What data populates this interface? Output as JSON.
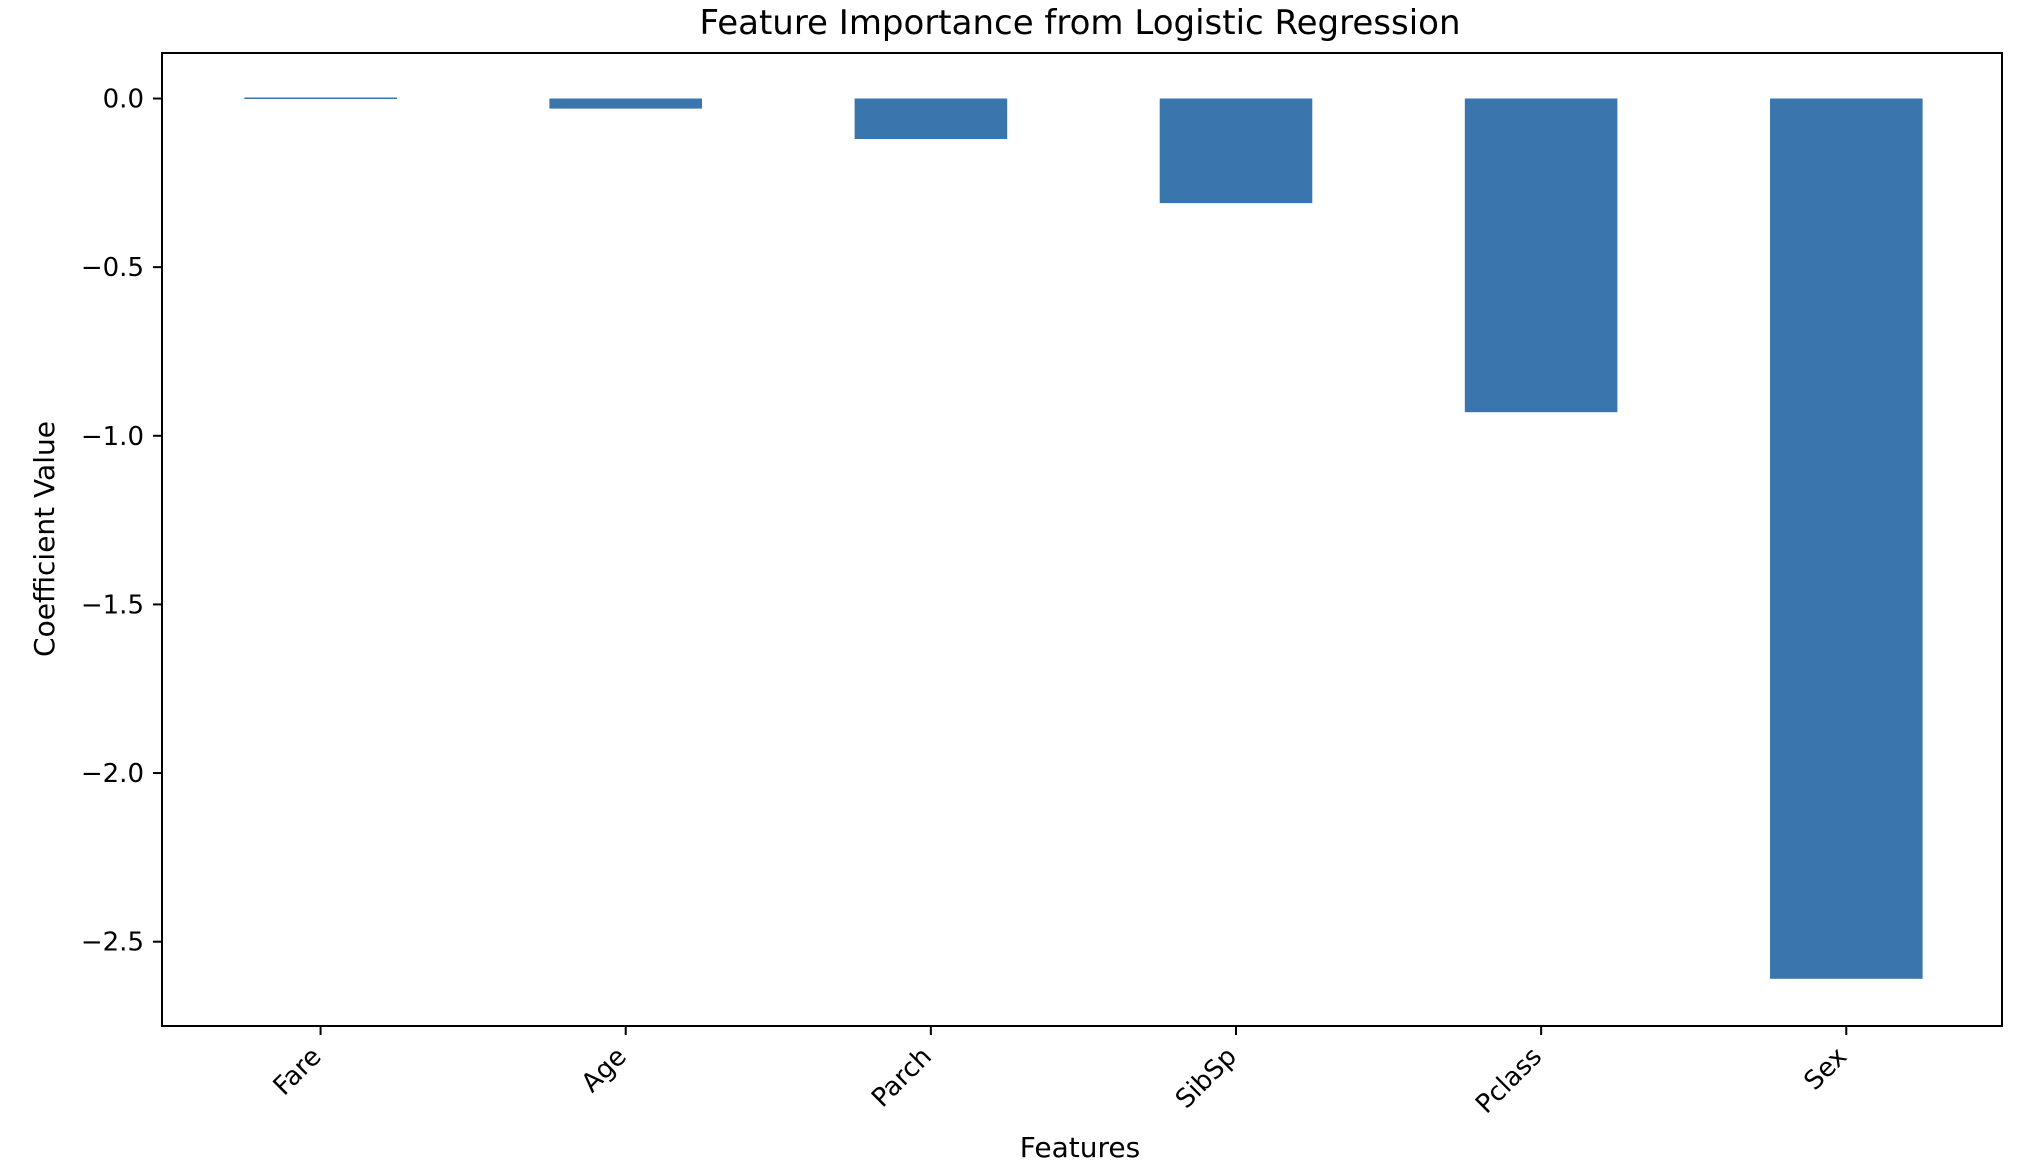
{
  "chart_data": {
    "type": "bar",
    "title": "Feature Importance from Logistic Regression",
    "xlabel": "Features",
    "ylabel": "Coefficient Value",
    "categories": [
      "Fare",
      "Age",
      "Parch",
      "SibSp",
      "Pclass",
      "Sex"
    ],
    "values": [
      0.002,
      -0.03,
      -0.12,
      -0.31,
      -0.93,
      -2.61
    ],
    "ylim": [
      -2.75,
      0.135
    ],
    "yticks": [
      0.0,
      -0.5,
      -1.0,
      -1.5,
      -2.0,
      -2.5
    ],
    "ytick_labels": [
      "0.0",
      "−0.5",
      "−1.0",
      "−1.5",
      "−2.0",
      "−2.5"
    ],
    "bar_color": "#3a75ae",
    "grid": false,
    "legend": "none"
  }
}
